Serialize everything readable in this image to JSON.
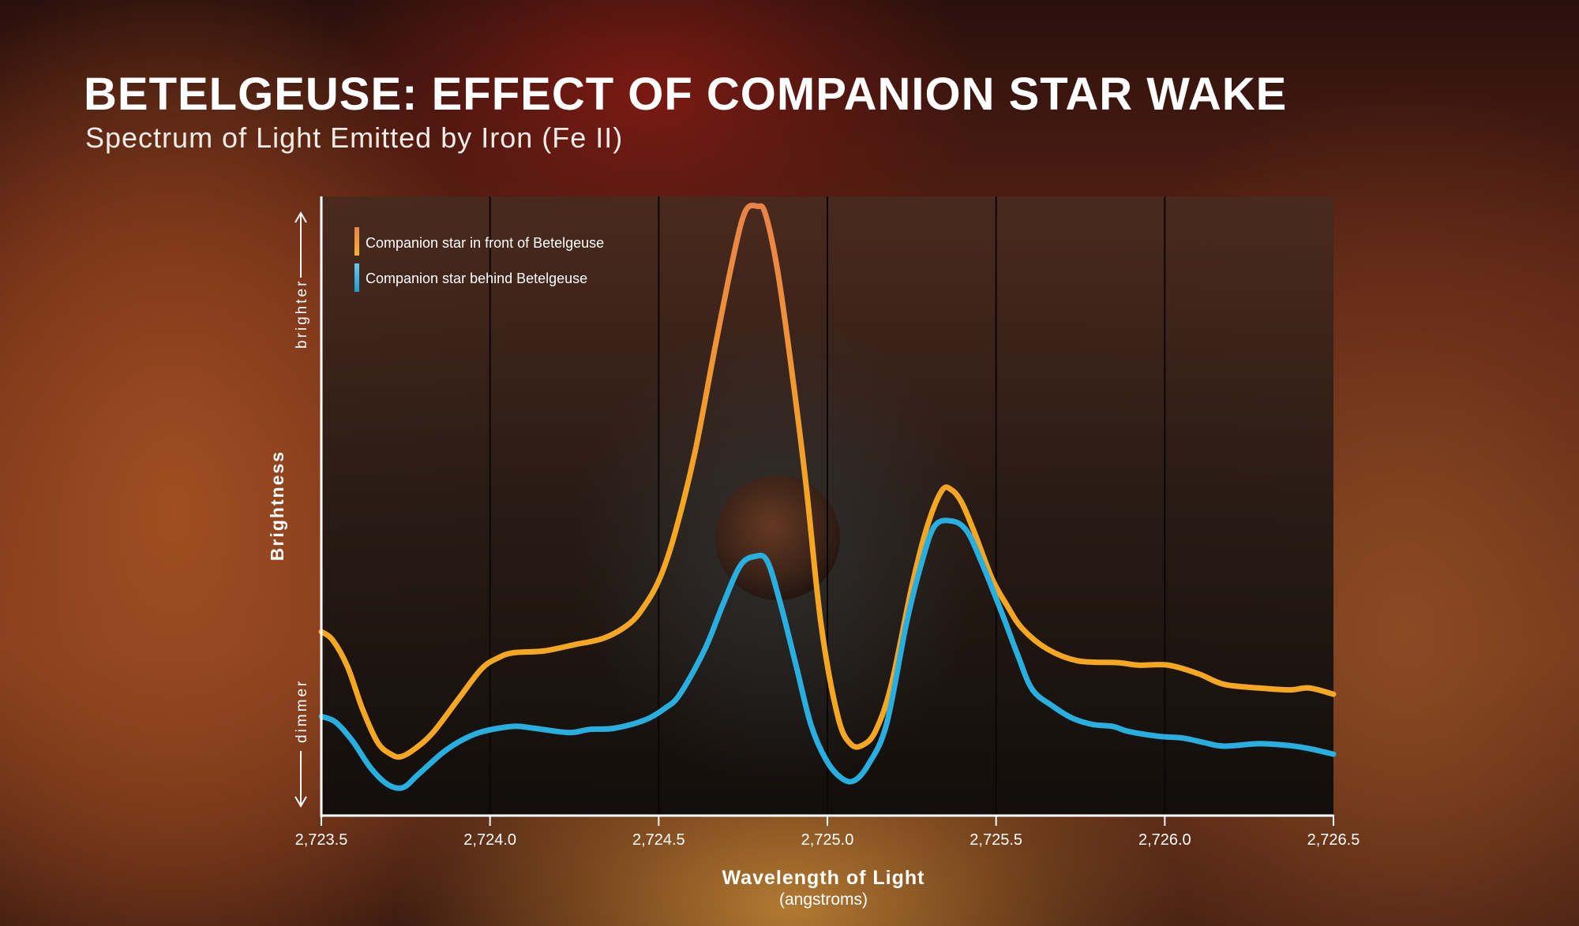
{
  "header": {
    "title": "BETELGEUSE: EFFECT OF COMPANION STAR WAKE",
    "subtitle": "Spectrum of Light Emitted by Iron (Fe II)"
  },
  "chart_data": {
    "type": "line",
    "title": "BETELGEUSE: EFFECT OF COMPANION STAR WAKE",
    "subtitle": "Spectrum of Light Emitted by Iron (Fe II)",
    "xlabel": "Wavelength of Light",
    "xunit": "(angstroms)",
    "ylabel": "Brightness",
    "y_direction_labels": {
      "up": "brighter",
      "down": "dimmer"
    },
    "xlim": [
      2723.5,
      2726.5
    ],
    "ylim": [
      0,
      100
    ],
    "y_scale_note": "relative (no numeric ticks)",
    "xticks": [
      "2,723.5",
      "2,724.0",
      "2,724.5",
      "2,725.0",
      "2,725.5",
      "2,726.0",
      "2,726.5"
    ],
    "xtick_values": [
      2723.5,
      2724.0,
      2724.5,
      2725.0,
      2725.5,
      2726.0,
      2726.5
    ],
    "grid": "vertical",
    "legend": "top-left",
    "series": [
      {
        "name": "Companion star in front of Betelgeuse",
        "color": "#f5a623",
        "color_top": "#e8824a",
        "x": [
          2723.5,
          2723.533,
          2723.578,
          2723.622,
          2723.667,
          2723.706,
          2723.736,
          2723.778,
          2723.831,
          2723.906,
          2723.975,
          2724.025,
          2724.07,
          2724.16,
          2724.249,
          2724.339,
          2724.413,
          2724.458,
          2724.503,
          2724.548,
          2724.607,
          2724.667,
          2724.721,
          2724.757,
          2724.793,
          2724.816,
          2724.852,
          2724.891,
          2724.936,
          2724.981,
          2725.031,
          2725.07,
          2725.109,
          2725.145,
          2725.19,
          2725.249,
          2725.294,
          2725.339,
          2725.369,
          2725.399,
          2725.437,
          2725.488,
          2725.533,
          2725.578,
          2725.652,
          2725.742,
          2725.861,
          2725.921,
          2726.01,
          2726.1,
          2726.175,
          2726.279,
          2726.369,
          2726.428,
          2726.5
        ],
        "y": [
          29.6,
          28.3,
          23.9,
          17.1,
          11.7,
          9.8,
          9.4,
          10.7,
          13.3,
          18.7,
          23.6,
          25.4,
          26.2,
          26.5,
          27.5,
          28.6,
          30.9,
          33.8,
          38.2,
          45.5,
          58.5,
          75.6,
          90.2,
          97.6,
          98.4,
          97.2,
          88.1,
          73.2,
          53.7,
          30.9,
          15.9,
          11.4,
          11.4,
          13.8,
          21.1,
          36.6,
          46.3,
          52.4,
          52.5,
          50.4,
          45.5,
          38.2,
          33.8,
          30.1,
          26.8,
          24.9,
          24.6,
          24.2,
          24.2,
          22.8,
          21.1,
          20.5,
          20.2,
          20.5,
          19.5
        ]
      },
      {
        "name": "Companion star behind Betelgeuse",
        "color": "#29aee0",
        "color_top": "#5cc4ea",
        "x": [
          2723.5,
          2723.542,
          2723.593,
          2723.646,
          2723.697,
          2723.742,
          2723.787,
          2723.861,
          2723.921,
          2723.981,
          2724.07,
          2724.13,
          2724.234,
          2724.294,
          2724.369,
          2724.458,
          2724.518,
          2724.563,
          2724.637,
          2724.691,
          2724.742,
          2724.787,
          2724.822,
          2724.861,
          2724.906,
          2724.951,
          2724.996,
          2725.04,
          2725.079,
          2725.121,
          2725.175,
          2725.234,
          2725.279,
          2725.318,
          2725.369,
          2725.413,
          2725.458,
          2725.518,
          2725.563,
          2725.607,
          2725.667,
          2725.727,
          2725.787,
          2725.846,
          2725.891,
          2725.981,
          2726.055,
          2726.115,
          2726.175,
          2726.279,
          2726.369,
          2726.428,
          2726.5
        ],
        "y": [
          15.9,
          15.0,
          11.9,
          7.6,
          4.9,
          4.4,
          6.5,
          10.1,
          12.2,
          13.5,
          14.3,
          14.0,
          13.3,
          13.8,
          14.0,
          15.3,
          17.2,
          19.5,
          26.8,
          34.1,
          40.3,
          41.8,
          41.0,
          34.1,
          24.4,
          14.6,
          8.9,
          6.0,
          5.5,
          8.1,
          14.6,
          30.9,
          40.7,
          46.7,
          47.5,
          45.9,
          40.7,
          32.5,
          26.0,
          20.3,
          17.6,
          15.6,
          14.6,
          14.3,
          13.5,
          12.7,
          12.4,
          11.7,
          11.1,
          11.5,
          11.2,
          10.7,
          9.8
        ]
      }
    ]
  }
}
